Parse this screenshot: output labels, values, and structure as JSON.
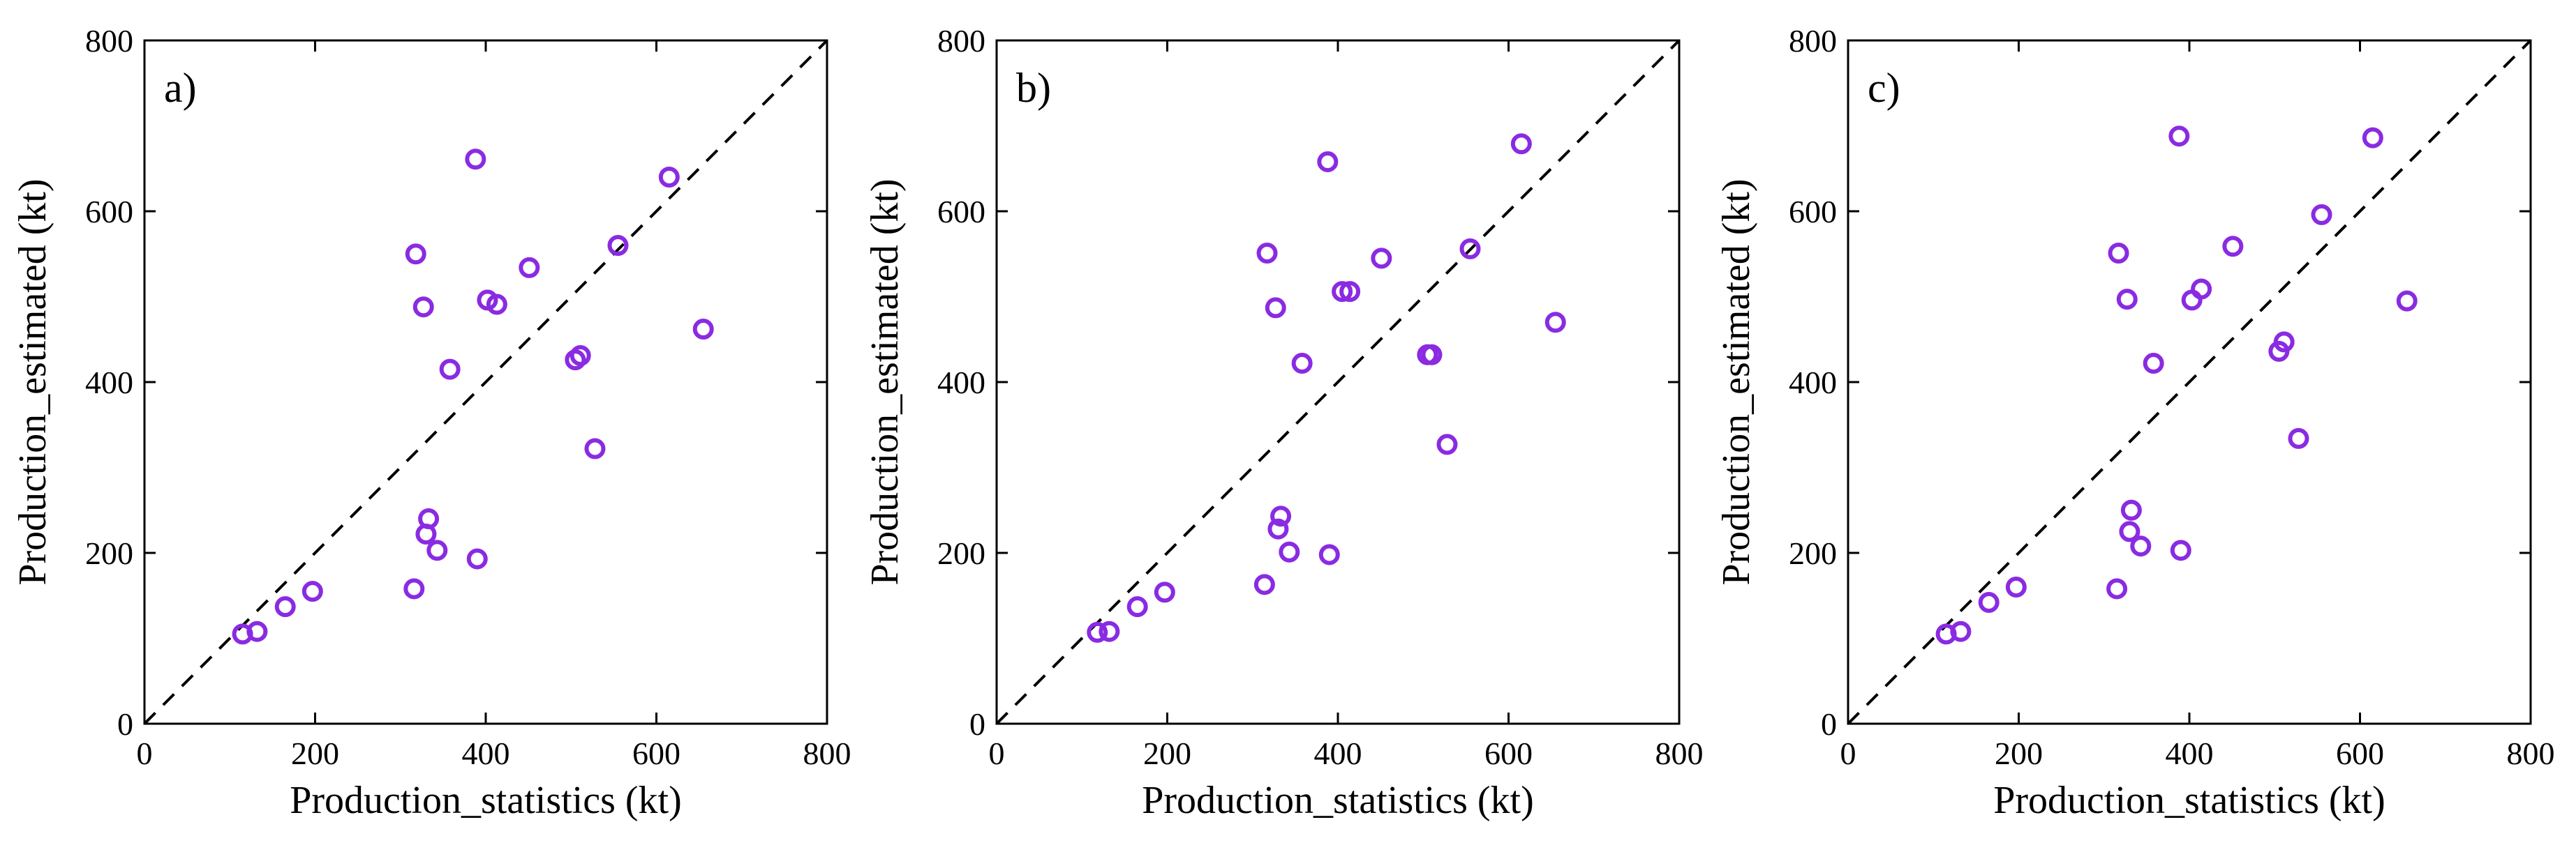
{
  "colors": {
    "marker": "#8a2be2",
    "axis": "#000000",
    "reference_line": "#000000",
    "background": "#ffffff"
  },
  "chart_data": [
    {
      "type": "scatter",
      "panel_label": "a)",
      "xlabel": "Production_statistics (kt)",
      "ylabel": "Production_estimated (kt)",
      "xlim": [
        0,
        800
      ],
      "ylim": [
        0,
        800
      ],
      "xticks": [
        "0",
        "200",
        "400",
        "600",
        "800"
      ],
      "yticks": [
        "0",
        "200",
        "400",
        "600",
        "800"
      ],
      "reference_line": "y = x (dashed)",
      "grid": false,
      "points": [
        {
          "x": 115,
          "y": 105
        },
        {
          "x": 132,
          "y": 108
        },
        {
          "x": 165,
          "y": 137
        },
        {
          "x": 197,
          "y": 155
        },
        {
          "x": 316,
          "y": 158
        },
        {
          "x": 318,
          "y": 550
        },
        {
          "x": 327,
          "y": 488
        },
        {
          "x": 330,
          "y": 222
        },
        {
          "x": 333,
          "y": 240
        },
        {
          "x": 343,
          "y": 203
        },
        {
          "x": 358,
          "y": 415
        },
        {
          "x": 388,
          "y": 661
        },
        {
          "x": 390,
          "y": 193
        },
        {
          "x": 402,
          "y": 496
        },
        {
          "x": 413,
          "y": 491
        },
        {
          "x": 451,
          "y": 534
        },
        {
          "x": 505,
          "y": 426
        },
        {
          "x": 511,
          "y": 431
        },
        {
          "x": 528,
          "y": 322
        },
        {
          "x": 555,
          "y": 560
        },
        {
          "x": 615,
          "y": 640
        },
        {
          "x": 655,
          "y": 462
        }
      ]
    },
    {
      "type": "scatter",
      "panel_label": "b)",
      "xlabel": "Production_statistics (kt)",
      "ylabel": "Production_estimated (kt)",
      "xlim": [
        0,
        800
      ],
      "ylim": [
        0,
        800
      ],
      "xticks": [
        "0",
        "200",
        "400",
        "600",
        "800"
      ],
      "yticks": [
        "0",
        "200",
        "400",
        "600",
        "800"
      ],
      "reference_line": "y = x (dashed)",
      "grid": false,
      "points": [
        {
          "x": 118,
          "y": 107
        },
        {
          "x": 132,
          "y": 108
        },
        {
          "x": 165,
          "y": 137
        },
        {
          "x": 197,
          "y": 154
        },
        {
          "x": 314,
          "y": 163
        },
        {
          "x": 317,
          "y": 551
        },
        {
          "x": 327,
          "y": 487
        },
        {
          "x": 330,
          "y": 228
        },
        {
          "x": 333,
          "y": 243
        },
        {
          "x": 343,
          "y": 201
        },
        {
          "x": 358,
          "y": 422
        },
        {
          "x": 388,
          "y": 658
        },
        {
          "x": 390,
          "y": 198
        },
        {
          "x": 405,
          "y": 506
        },
        {
          "x": 414,
          "y": 506
        },
        {
          "x": 451,
          "y": 545
        },
        {
          "x": 505,
          "y": 432
        },
        {
          "x": 510,
          "y": 432
        },
        {
          "x": 528,
          "y": 327
        },
        {
          "x": 555,
          "y": 556
        },
        {
          "x": 615,
          "y": 679
        },
        {
          "x": 655,
          "y": 470
        }
      ]
    },
    {
      "type": "scatter",
      "panel_label": "c)",
      "xlabel": "Production_statistics (kt)",
      "ylabel": "Production_estimated (kt)",
      "xlim": [
        0,
        800
      ],
      "ylim": [
        0,
        800
      ],
      "xticks": [
        "0",
        "200",
        "400",
        "600",
        "800"
      ],
      "yticks": [
        "0",
        "200",
        "400",
        "600",
        "800"
      ],
      "reference_line": "y = x (dashed)",
      "grid": false,
      "points": [
        {
          "x": 115,
          "y": 105
        },
        {
          "x": 132,
          "y": 108
        },
        {
          "x": 165,
          "y": 142
        },
        {
          "x": 197,
          "y": 160
        },
        {
          "x": 315,
          "y": 158
        },
        {
          "x": 317,
          "y": 551
        },
        {
          "x": 327,
          "y": 497
        },
        {
          "x": 330,
          "y": 225
        },
        {
          "x": 332,
          "y": 250
        },
        {
          "x": 343,
          "y": 208
        },
        {
          "x": 358,
          "y": 422
        },
        {
          "x": 388,
          "y": 688
        },
        {
          "x": 390,
          "y": 203
        },
        {
          "x": 403,
          "y": 496
        },
        {
          "x": 414,
          "y": 509
        },
        {
          "x": 451,
          "y": 559
        },
        {
          "x": 505,
          "y": 436
        },
        {
          "x": 511,
          "y": 447
        },
        {
          "x": 528,
          "y": 334
        },
        {
          "x": 555,
          "y": 596
        },
        {
          "x": 615,
          "y": 686
        },
        {
          "x": 655,
          "y": 495
        }
      ]
    }
  ]
}
